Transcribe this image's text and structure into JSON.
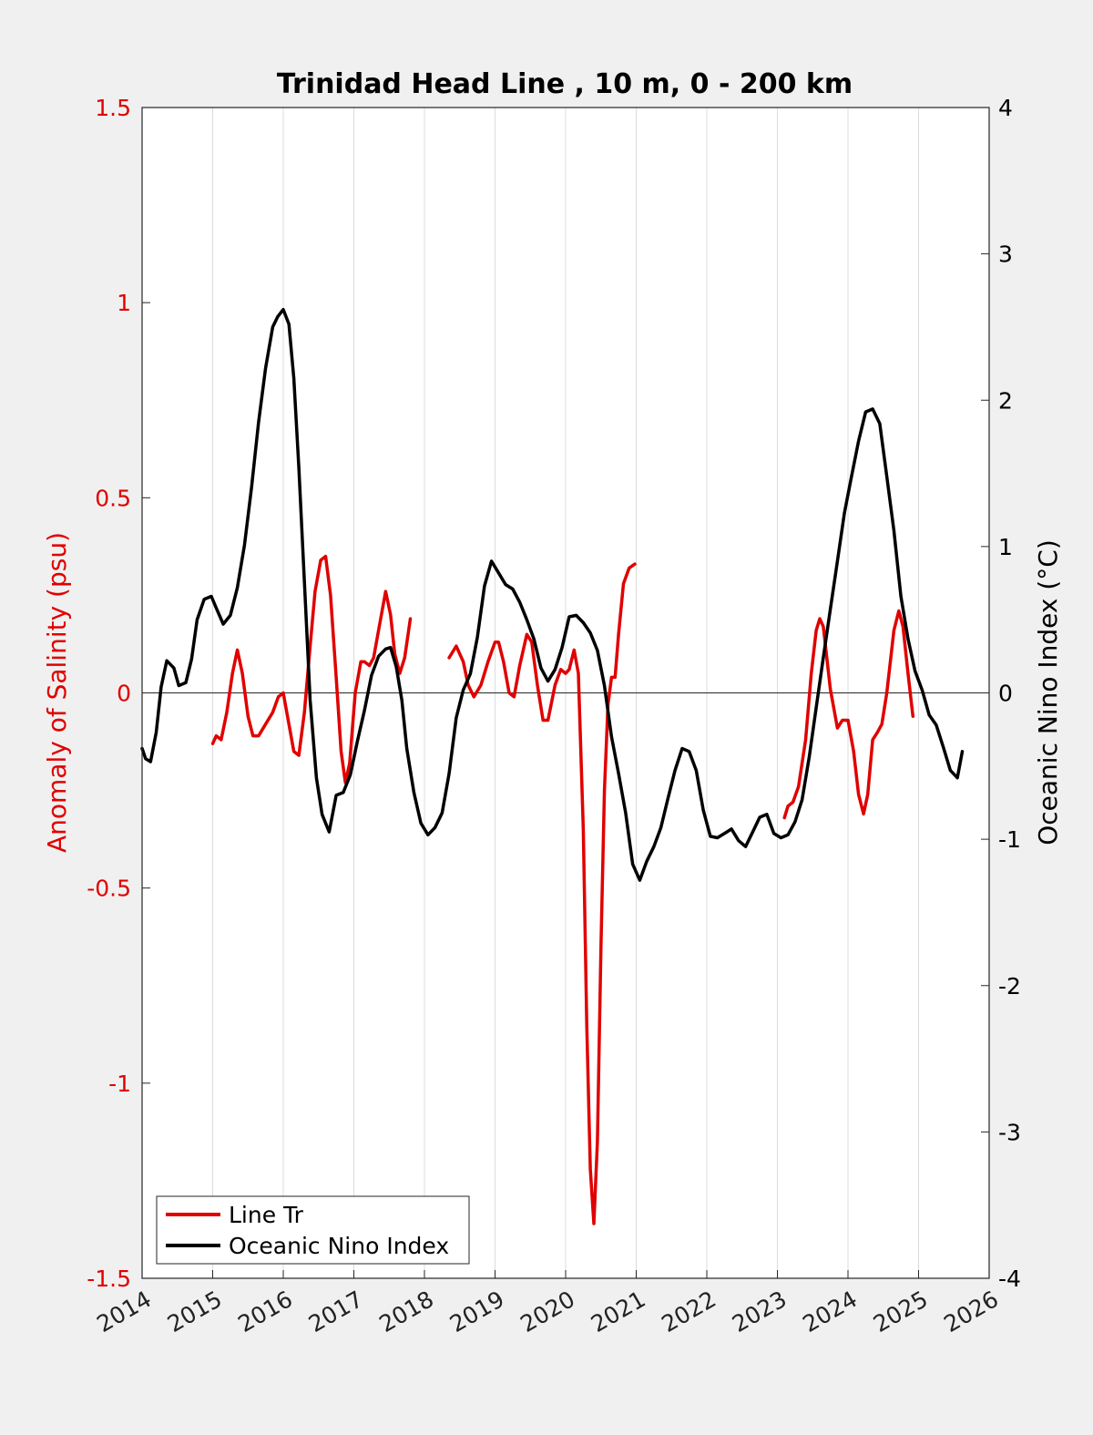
{
  "chart_data": {
    "type": "line",
    "title": "Trinidad Head Line , 10 m, 0 - 200 km",
    "xlim": [
      2014,
      2026
    ],
    "x_ticks": [
      "2014",
      "2015",
      "2016",
      "2017",
      "2018",
      "2019",
      "2020",
      "2021",
      "2022",
      "2023",
      "2024",
      "2025",
      "2026"
    ],
    "y_left": {
      "label": "Anomaly of Salinity (psu)",
      "lim": [
        -1.5,
        1.5
      ],
      "ticks": [
        "1.5",
        "1",
        "0.5",
        "0",
        "-0.5",
        "-1",
        "-1.5"
      ],
      "color": "#e00000"
    },
    "y_right": {
      "label": "Oceanic Nino Index (°C)",
      "lim": [
        -4,
        4
      ],
      "ticks": [
        "4",
        "3",
        "2",
        "1",
        "0",
        "-1",
        "-2",
        "-3",
        "-4"
      ],
      "color": "#000000"
    },
    "grid": "vertical",
    "legend_position": "bottom-left",
    "series": [
      {
        "name": "Line Tr",
        "axis": "left",
        "color": "#e00000",
        "segments": [
          [
            [
              2015.0,
              -0.13
            ],
            [
              2015.05,
              -0.11
            ],
            [
              2015.12,
              -0.12
            ],
            [
              2015.2,
              -0.05
            ],
            [
              2015.28,
              0.05
            ],
            [
              2015.35,
              0.11
            ],
            [
              2015.42,
              0.05
            ],
            [
              2015.5,
              -0.06
            ],
            [
              2015.57,
              -0.11
            ],
            [
              2015.65,
              -0.11
            ],
            [
              2015.75,
              -0.08
            ],
            [
              2015.85,
              -0.05
            ],
            [
              2015.93,
              -0.01
            ],
            [
              2016.0,
              0.0
            ],
            [
              2016.08,
              -0.08
            ],
            [
              2016.15,
              -0.15
            ],
            [
              2016.22,
              -0.16
            ],
            [
              2016.3,
              -0.05
            ],
            [
              2016.38,
              0.12
            ],
            [
              2016.45,
              0.26
            ],
            [
              2016.53,
              0.34
            ],
            [
              2016.6,
              0.35
            ],
            [
              2016.67,
              0.25
            ],
            [
              2016.75,
              0.04
            ],
            [
              2016.82,
              -0.15
            ],
            [
              2016.88,
              -0.23
            ],
            [
              2016.94,
              -0.18
            ],
            [
              2017.02,
              0.0
            ],
            [
              2017.1,
              0.08
            ],
            [
              2017.15,
              0.08
            ],
            [
              2017.22,
              0.07
            ],
            [
              2017.28,
              0.09
            ],
            [
              2017.35,
              0.16
            ],
            [
              2017.45,
              0.26
            ],
            [
              2017.52,
              0.2
            ],
            [
              2017.58,
              0.1
            ],
            [
              2017.65,
              0.05
            ],
            [
              2017.72,
              0.09
            ],
            [
              2017.8,
              0.19
            ]
          ],
          [
            [
              2018.35,
              0.09
            ],
            [
              2018.45,
              0.12
            ],
            [
              2018.55,
              0.08
            ],
            [
              2018.62,
              0.02
            ],
            [
              2018.7,
              -0.01
            ],
            [
              2018.8,
              0.02
            ],
            [
              2018.9,
              0.08
            ],
            [
              2019.0,
              0.13
            ],
            [
              2019.05,
              0.13
            ],
            [
              2019.12,
              0.08
            ],
            [
              2019.2,
              0.0
            ],
            [
              2019.27,
              -0.01
            ],
            [
              2019.35,
              0.07
            ],
            [
              2019.45,
              0.15
            ],
            [
              2019.52,
              0.13
            ],
            [
              2019.6,
              0.02
            ],
            [
              2019.68,
              -0.07
            ],
            [
              2019.75,
              -0.07
            ],
            [
              2019.85,
              0.02
            ],
            [
              2019.93,
              0.06
            ],
            [
              2020.0,
              0.05
            ],
            [
              2020.05,
              0.06
            ],
            [
              2020.12,
              0.11
            ],
            [
              2020.18,
              0.05
            ],
            [
              2020.25,
              -0.35
            ],
            [
              2020.3,
              -0.85
            ],
            [
              2020.35,
              -1.22
            ],
            [
              2020.4,
              -1.36
            ],
            [
              2020.45,
              -1.15
            ],
            [
              2020.5,
              -0.65
            ],
            [
              2020.55,
              -0.25
            ],
            [
              2020.6,
              -0.03
            ],
            [
              2020.65,
              0.04
            ],
            [
              2020.7,
              0.04
            ],
            [
              2020.75,
              0.15
            ],
            [
              2020.82,
              0.28
            ],
            [
              2020.9,
              0.32
            ],
            [
              2020.98,
              0.33
            ]
          ],
          [
            [
              2023.1,
              -0.32
            ],
            [
              2023.15,
              -0.29
            ],
            [
              2023.22,
              -0.28
            ],
            [
              2023.3,
              -0.24
            ],
            [
              2023.4,
              -0.12
            ],
            [
              2023.48,
              0.05
            ],
            [
              2023.55,
              0.16
            ],
            [
              2023.6,
              0.19
            ],
            [
              2023.65,
              0.17
            ],
            [
              2023.75,
              0.01
            ],
            [
              2023.85,
              -0.09
            ],
            [
              2023.92,
              -0.07
            ],
            [
              2024.0,
              -0.07
            ],
            [
              2024.08,
              -0.15
            ],
            [
              2024.15,
              -0.26
            ],
            [
              2024.22,
              -0.31
            ],
            [
              2024.28,
              -0.26
            ],
            [
              2024.35,
              -0.12
            ],
            [
              2024.42,
              -0.1
            ],
            [
              2024.48,
              -0.08
            ],
            [
              2024.55,
              0.0
            ],
            [
              2024.65,
              0.16
            ],
            [
              2024.72,
              0.21
            ],
            [
              2024.78,
              0.17
            ],
            [
              2024.85,
              0.05
            ],
            [
              2024.92,
              -0.06
            ]
          ]
        ]
      },
      {
        "name": "Oceanic Nino Index",
        "axis": "right",
        "color": "#000000",
        "points": [
          [
            2014.0,
            -0.38
          ],
          [
            2014.05,
            -0.45
          ],
          [
            2014.12,
            -0.47
          ],
          [
            2014.2,
            -0.27
          ],
          [
            2014.27,
            0.04
          ],
          [
            2014.35,
            0.22
          ],
          [
            2014.45,
            0.17
          ],
          [
            2014.52,
            0.05
          ],
          [
            2014.62,
            0.07
          ],
          [
            2014.7,
            0.23
          ],
          [
            2014.78,
            0.5
          ],
          [
            2014.88,
            0.64
          ],
          [
            2014.98,
            0.66
          ],
          [
            2015.05,
            0.58
          ],
          [
            2015.15,
            0.47
          ],
          [
            2015.25,
            0.53
          ],
          [
            2015.35,
            0.72
          ],
          [
            2015.45,
            1.01
          ],
          [
            2015.55,
            1.4
          ],
          [
            2015.65,
            1.85
          ],
          [
            2015.75,
            2.22
          ],
          [
            2015.85,
            2.5
          ],
          [
            2015.92,
            2.57
          ],
          [
            2016.0,
            2.62
          ],
          [
            2016.08,
            2.52
          ],
          [
            2016.15,
            2.15
          ],
          [
            2016.22,
            1.54
          ],
          [
            2016.3,
            0.76
          ],
          [
            2016.38,
            -0.05
          ],
          [
            2016.47,
            -0.58
          ],
          [
            2016.55,
            -0.83
          ],
          [
            2016.65,
            -0.95
          ],
          [
            2016.75,
            -0.7
          ],
          [
            2016.85,
            -0.68
          ],
          [
            2016.95,
            -0.56
          ],
          [
            2017.05,
            -0.33
          ],
          [
            2017.15,
            -0.12
          ],
          [
            2017.25,
            0.12
          ],
          [
            2017.35,
            0.25
          ],
          [
            2017.45,
            0.3
          ],
          [
            2017.52,
            0.31
          ],
          [
            2017.6,
            0.18
          ],
          [
            2017.68,
            -0.05
          ],
          [
            2017.75,
            -0.38
          ],
          [
            2017.85,
            -0.68
          ],
          [
            2017.95,
            -0.89
          ],
          [
            2018.05,
            -0.97
          ],
          [
            2018.15,
            -0.92
          ],
          [
            2018.25,
            -0.82
          ],
          [
            2018.35,
            -0.55
          ],
          [
            2018.45,
            -0.17
          ],
          [
            2018.55,
            0.02
          ],
          [
            2018.65,
            0.13
          ],
          [
            2018.75,
            0.38
          ],
          [
            2018.85,
            0.73
          ],
          [
            2018.95,
            0.9
          ],
          [
            2019.05,
            0.82
          ],
          [
            2019.15,
            0.74
          ],
          [
            2019.25,
            0.71
          ],
          [
            2019.35,
            0.62
          ],
          [
            2019.45,
            0.5
          ],
          [
            2019.55,
            0.37
          ],
          [
            2019.65,
            0.17
          ],
          [
            2019.75,
            0.08
          ],
          [
            2019.85,
            0.16
          ],
          [
            2019.95,
            0.31
          ],
          [
            2020.05,
            0.52
          ],
          [
            2020.15,
            0.53
          ],
          [
            2020.25,
            0.48
          ],
          [
            2020.35,
            0.41
          ],
          [
            2020.45,
            0.29
          ],
          [
            2020.55,
            0.05
          ],
          [
            2020.65,
            -0.3
          ],
          [
            2020.75,
            -0.55
          ],
          [
            2020.85,
            -0.82
          ],
          [
            2020.95,
            -1.17
          ],
          [
            2021.05,
            -1.28
          ],
          [
            2021.15,
            -1.15
          ],
          [
            2021.25,
            -1.05
          ],
          [
            2021.35,
            -0.92
          ],
          [
            2021.45,
            -0.72
          ],
          [
            2021.55,
            -0.53
          ],
          [
            2021.65,
            -0.38
          ],
          [
            2021.75,
            -0.4
          ],
          [
            2021.85,
            -0.53
          ],
          [
            2021.95,
            -0.8
          ],
          [
            2022.05,
            -0.98
          ],
          [
            2022.15,
            -0.99
          ],
          [
            2022.25,
            -0.96
          ],
          [
            2022.35,
            -0.93
          ],
          [
            2022.45,
            -1.01
          ],
          [
            2022.55,
            -1.05
          ],
          [
            2022.65,
            -0.95
          ],
          [
            2022.75,
            -0.85
          ],
          [
            2022.85,
            -0.83
          ],
          [
            2022.95,
            -0.96
          ],
          [
            2023.05,
            -0.99
          ],
          [
            2023.15,
            -0.97
          ],
          [
            2023.25,
            -0.88
          ],
          [
            2023.35,
            -0.73
          ],
          [
            2023.45,
            -0.44
          ],
          [
            2023.55,
            -0.1
          ],
          [
            2023.65,
            0.24
          ],
          [
            2023.75,
            0.57
          ],
          [
            2023.85,
            0.9
          ],
          [
            2023.95,
            1.23
          ],
          [
            2024.05,
            1.48
          ],
          [
            2024.15,
            1.72
          ],
          [
            2024.25,
            1.92
          ],
          [
            2024.35,
            1.94
          ],
          [
            2024.45,
            1.84
          ],
          [
            2024.55,
            1.48
          ],
          [
            2024.65,
            1.11
          ],
          [
            2024.75,
            0.66
          ],
          [
            2024.85,
            0.37
          ],
          [
            2024.95,
            0.15
          ],
          [
            2025.05,
            0.02
          ],
          [
            2025.15,
            -0.15
          ],
          [
            2025.25,
            -0.22
          ],
          [
            2025.35,
            -0.37
          ],
          [
            2025.45,
            -0.53
          ],
          [
            2025.55,
            -0.58
          ],
          [
            2025.62,
            -0.4
          ]
        ]
      }
    ]
  }
}
